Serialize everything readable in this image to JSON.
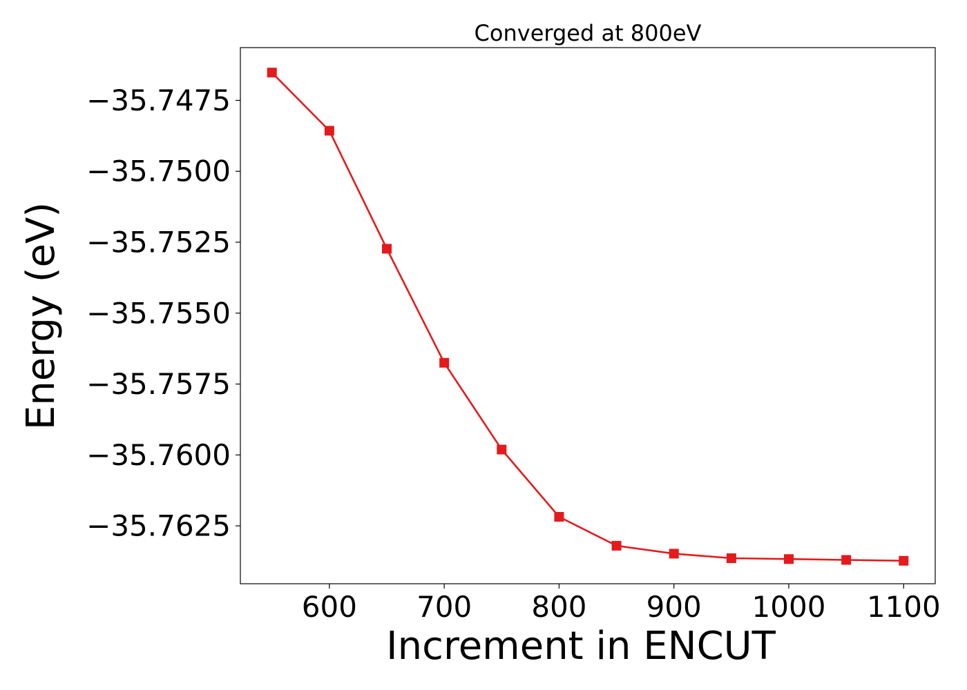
{
  "chart_data": {
    "type": "line",
    "title": "Converged at 800eV",
    "xlabel": "Increment in ENCUT",
    "ylabel": "Energy (eV)",
    "xlim": [
      522.5,
      1127.5
    ],
    "ylim": [
      -35.76454,
      -35.74564
    ],
    "xticks": [
      600,
      700,
      800,
      900,
      1000,
      1100
    ],
    "yticks": [
      -35.7475,
      -35.75,
      -35.7525,
      -35.755,
      -35.7575,
      -35.76,
      -35.7625
    ],
    "ytick_labels": [
      "−35.7475",
      "−35.7500",
      "−35.7525",
      "−35.7550",
      "−35.7575",
      "−35.7600",
      "−35.7625"
    ],
    "grid": false,
    "series": [
      {
        "color": "#e41a1c",
        "marker": "square",
        "x": [
          550,
          600,
          650,
          700,
          750,
          800,
          850,
          900,
          950,
          1000,
          1050,
          1100
        ],
        "y": [
          -35.74652,
          -35.74857,
          -35.75273,
          -35.75675,
          -35.75981,
          -35.76218,
          -35.7632,
          -35.76348,
          -35.76364,
          -35.76367,
          -35.7637,
          -35.76373
        ]
      }
    ]
  }
}
